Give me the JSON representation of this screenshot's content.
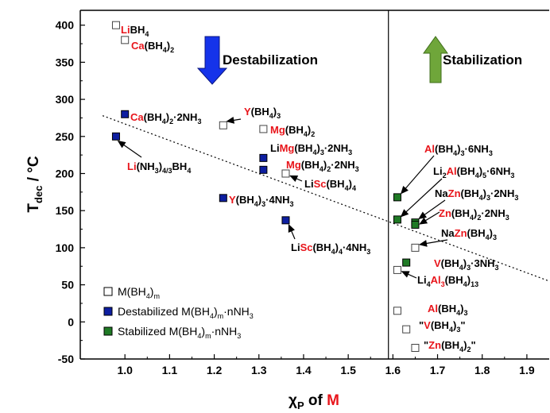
{
  "chart_data": {
    "type": "scatter",
    "title": "",
    "xlabel": "χP of M",
    "ylabel": "Tdec / °C",
    "xlim": [
      0.9,
      1.95
    ],
    "ylim": [
      -50,
      420
    ],
    "x_ticks": [
      "1.0",
      "1.1",
      "1.2",
      "1.3",
      "1.4",
      "1.5",
      "1.6",
      "1.7",
      "1.8",
      "1.9"
    ],
    "y_ticks": [
      "-50",
      "0",
      "50",
      "100",
      "150",
      "200",
      "250",
      "300",
      "350",
      "400"
    ],
    "divider_x": 1.59,
    "trend_line": {
      "start": [
        0.95,
        278
      ],
      "end": [
        1.95,
        55
      ]
    },
    "regions": {
      "left": "Destabilization",
      "right": "Stabilization"
    },
    "colors": {
      "M": "#ffffff",
      "destabilized": "#0d1ea0",
      "stabilized": "#1f7a25",
      "red": "#e8151b",
      "arrow_down": "#1533ea",
      "arrow_up": "#6fa63a"
    },
    "legend": {
      "placement": "bottom-left",
      "entries": [
        {
          "series": "M",
          "label": "M(BH4)m"
        },
        {
          "series": "destabilized",
          "label": "Destabilized M(BH4)m·nNH3"
        },
        {
          "series": "stabilized",
          "label": "Stabilized M(BH4)m·nNH3"
        }
      ]
    },
    "series": [
      {
        "key": "M",
        "name": "M(BH4)m",
        "points": [
          {
            "x": 0.98,
            "y": 400,
            "label": "LiBH4"
          },
          {
            "x": 1.0,
            "y": 380,
            "label": "Ca(BH4)2"
          },
          {
            "x": 1.22,
            "y": 265,
            "label": "Y(BH4)3"
          },
          {
            "x": 1.31,
            "y": 260,
            "label": "Mg(BH4)2"
          },
          {
            "x": 1.36,
            "y": 200,
            "label": "LiSc(BH4)4"
          },
          {
            "x": 1.65,
            "y": 100,
            "label": "NaZn(BH4)3"
          },
          {
            "x": 1.61,
            "y": 70,
            "label": "Li4Al3(BH4)13"
          },
          {
            "x": 1.61,
            "y": 15,
            "label": "Al(BH4)3"
          },
          {
            "x": 1.63,
            "y": -10,
            "label": "\"V(BH4)3\""
          },
          {
            "x": 1.65,
            "y": -35,
            "label": "\"Zn(BH4)2\""
          }
        ]
      },
      {
        "key": "destabilized",
        "name": "Destabilized M(BH4)m·nNH3",
        "points": [
          {
            "x": 1.0,
            "y": 280,
            "label": "Ca(BH4)2·2NH3"
          },
          {
            "x": 0.98,
            "y": 250,
            "label": "Li(NH3)4/3BH4"
          },
          {
            "x": 1.31,
            "y": 221,
            "label": "LiMg(BH4)3·2NH3"
          },
          {
            "x": 1.31,
            "y": 205,
            "label": "Mg(BH4)2·2NH3"
          },
          {
            "x": 1.22,
            "y": 167,
            "label": "Y(BH4)3·4NH3"
          },
          {
            "x": 1.36,
            "y": 137,
            "label": "LiSc(BH4)4·4NH3"
          }
        ]
      },
      {
        "key": "stabilized",
        "name": "Stabilized M(BH4)m·nNH3",
        "points": [
          {
            "x": 1.61,
            "y": 168,
            "label": "Al(BH4)3·6NH3"
          },
          {
            "x": 1.61,
            "y": 138,
            "label": "Li2Al(BH4)5·6NH3"
          },
          {
            "x": 1.65,
            "y": 134,
            "label": "NaZn(BH4)3·2NH3"
          },
          {
            "x": 1.65,
            "y": 131,
            "label": "Zn(BH4)2·2NH3"
          },
          {
            "x": 1.63,
            "y": 80,
            "label": "V(BH4)3·3NH3"
          }
        ]
      }
    ]
  }
}
